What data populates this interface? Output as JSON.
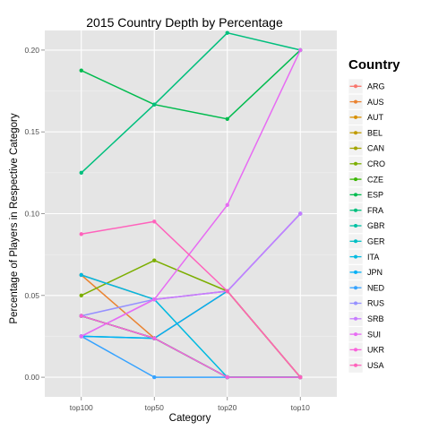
{
  "chart_data": {
    "type": "line",
    "title": "2015 Country Depth by Percentage",
    "xlabel": "Category",
    "ylabel": "Percentage of Players in Respective Category",
    "categories": [
      "top100",
      "top50",
      "top20",
      "top10"
    ],
    "ylim": [
      -0.012,
      0.212
    ],
    "yticks": [
      0.0,
      0.05,
      0.1,
      0.15,
      0.2
    ],
    "ytick_labels": [
      "0.00",
      "0.05",
      "0.10",
      "0.15",
      "0.20"
    ],
    "grid": true,
    "legend_position": "right",
    "legend_title": "Country",
    "series": [
      {
        "name": "ARG",
        "color": "#F8766D",
        "values": [
          0.0625,
          0.0476,
          0.0526,
          0.0
        ]
      },
      {
        "name": "AUS",
        "color": "#EA8331",
        "values": [
          0.0625,
          0.0238,
          0.0526,
          0.0
        ]
      },
      {
        "name": "AUT",
        "color": "#D89000",
        "values": [
          0.0375,
          0.0238,
          0.0,
          0.0
        ]
      },
      {
        "name": "BEL",
        "color": "#C09B00",
        "values": [
          0.0375,
          0.0238,
          0.0,
          0.0
        ]
      },
      {
        "name": "CAN",
        "color": "#A3A500",
        "values": [
          0.0375,
          0.0238,
          0.0,
          0.0
        ]
      },
      {
        "name": "CRO",
        "color": "#7CAE00",
        "values": [
          0.05,
          0.0714,
          0.0526,
          0.0
        ]
      },
      {
        "name": "CZE",
        "color": "#39B600",
        "values": [
          0.0375,
          0.0238,
          0.0,
          0.0
        ]
      },
      {
        "name": "ESP",
        "color": "#00BB4E",
        "values": [
          0.1875,
          0.1667,
          0.1579,
          0.2
        ]
      },
      {
        "name": "FRA",
        "color": "#00BF7D",
        "values": [
          0.125,
          0.1667,
          0.2105,
          0.2
        ]
      },
      {
        "name": "GBR",
        "color": "#00C1A3",
        "values": [
          0.025,
          0.0238,
          0.0,
          0.0
        ]
      },
      {
        "name": "GER",
        "color": "#00BFC4",
        "values": [
          0.0375,
          0.0238,
          0.0,
          0.0
        ]
      },
      {
        "name": "ITA",
        "color": "#00BAE0",
        "values": [
          0.0625,
          0.0476,
          0.0,
          0.0
        ]
      },
      {
        "name": "JPN",
        "color": "#00B0F6",
        "values": [
          0.025,
          0.0238,
          0.0526,
          0.1
        ]
      },
      {
        "name": "NED",
        "color": "#35A2FF",
        "values": [
          0.025,
          0.0,
          0.0,
          0.0
        ]
      },
      {
        "name": "RUS",
        "color": "#9590FF",
        "values": [
          0.0375,
          0.0476,
          0.0526,
          0.1
        ]
      },
      {
        "name": "SRB",
        "color": "#C77CFF",
        "values": [
          0.025,
          0.0476,
          0.0526,
          0.1
        ]
      },
      {
        "name": "SUI",
        "color": "#E76BF3",
        "values": [
          0.025,
          0.0476,
          0.1053,
          0.2
        ]
      },
      {
        "name": "UKR",
        "color": "#FA62DB",
        "values": [
          0.0375,
          0.0238,
          0.0,
          0.0
        ]
      },
      {
        "name": "USA",
        "color": "#FF62BC",
        "values": [
          0.0875,
          0.0952,
          0.0526,
          0.0
        ]
      }
    ]
  }
}
